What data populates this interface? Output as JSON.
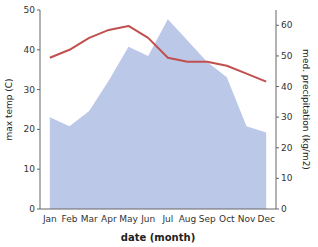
{
  "chart_data": {
    "type": "line",
    "xlabel": "date (month)",
    "ylabel": "max temp (C)",
    "y2label": "med. precipitation (kg/m2)",
    "categories": [
      "Jan",
      "Feb",
      "Mar",
      "Apr",
      "May",
      "Jun",
      "Jul",
      "Aug",
      "Sep",
      "Oct",
      "Nov",
      "Dec"
    ],
    "series": [
      {
        "type": "area",
        "axis": "y2",
        "color": "#bbc8e8",
        "values": [
          30,
          27,
          32,
          42,
          53,
          50,
          62,
          55,
          48,
          43,
          27,
          25
        ]
      },
      {
        "type": "line",
        "color": "#c0504d",
        "values": [
          38,
          40,
          43,
          45,
          46,
          43,
          38,
          37,
          37,
          36,
          34,
          32
        ]
      }
    ],
    "ylim": [
      0,
      50
    ],
    "yticks": [
      0,
      10,
      20,
      30,
      40,
      50
    ],
    "y2lim": [
      0,
      65
    ],
    "y2ticks": [
      0,
      10,
      20,
      30,
      40,
      50,
      60
    ],
    "grid": false
  }
}
